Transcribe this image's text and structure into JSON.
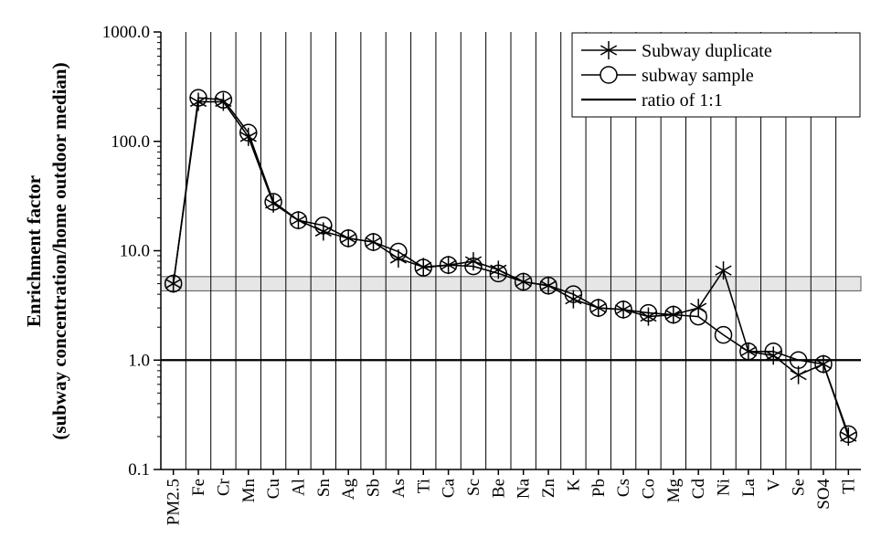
{
  "chart_data": {
    "type": "line",
    "ylabel_line1": "Enrichment factor",
    "ylabel_line2": "(subway concentration/home outdoor median)",
    "xlabel": "",
    "y_scale": "log",
    "ylim": [
      0.1,
      1000
    ],
    "y_ticks": [
      "0.1",
      "1.0",
      "10.0",
      "100.0",
      "1000.0"
    ],
    "y_tick_values": [
      0.1,
      1,
      10,
      100,
      1000
    ],
    "categories": [
      "PM2.5",
      "Fe",
      "Cr",
      "Mn",
      "Cu",
      "Al",
      "Sn",
      "Ag",
      "Sb",
      "As",
      "Ti",
      "Ca",
      "Sc",
      "Be",
      "Na",
      "Zn",
      "K",
      "Pb",
      "Cs",
      "Co",
      "Mg",
      "Cd",
      "Ni",
      "La",
      "V",
      "Se",
      "SO4",
      "Tl"
    ],
    "series": [
      {
        "name": "Subway duplicate",
        "marker": "asterisk",
        "color": "#000000",
        "values": [
          5.0,
          230,
          230,
          110,
          27,
          19,
          15,
          13,
          12,
          8.5,
          7.1,
          7.4,
          8.0,
          6.7,
          5.2,
          4.8,
          3.6,
          3.0,
          2.9,
          2.5,
          2.6,
          3.0,
          6.6,
          1.2,
          1.1,
          0.73,
          0.92,
          0.2
        ]
      },
      {
        "name": "subway sample",
        "marker": "circle",
        "color": "#000000",
        "values": [
          5.0,
          250,
          240,
          120,
          28,
          19,
          17,
          13,
          12,
          9.8,
          7.0,
          7.4,
          7.2,
          6.2,
          5.2,
          4.8,
          4.0,
          3.0,
          2.9,
          2.7,
          2.6,
          2.5,
          1.7,
          1.2,
          1.2,
          1.0,
          0.92,
          0.21
        ]
      }
    ],
    "reference_line": {
      "name": "ratio of 1:1",
      "value": 1.0
    },
    "band": {
      "low": 4.3,
      "high": 5.8
    },
    "grid": "vertical",
    "legend_position": "top-right"
  }
}
